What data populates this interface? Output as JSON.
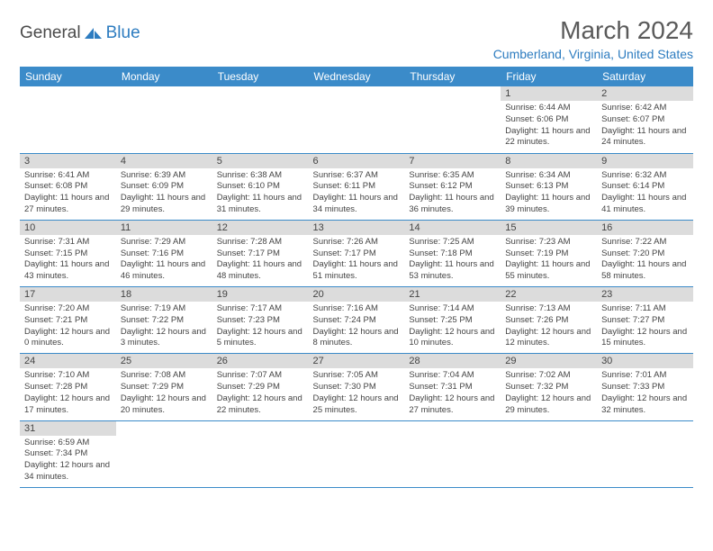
{
  "logo": {
    "text1": "General",
    "text2": "Blue"
  },
  "title": "March 2024",
  "location": "Cumberland, Virginia, United States",
  "day_headers": [
    "Sunday",
    "Monday",
    "Tuesday",
    "Wednesday",
    "Thursday",
    "Friday",
    "Saturday"
  ],
  "colors": {
    "header_bg": "#3b8bc9",
    "header_fg": "#ffffff",
    "daynum_bg": "#dcdcdc",
    "text": "#444444",
    "accent": "#2d7cc0",
    "border": "#3b8bc9"
  },
  "weeks": [
    [
      null,
      null,
      null,
      null,
      null,
      {
        "n": "1",
        "sunrise": "6:44 AM",
        "sunset": "6:06 PM",
        "daylight": "11 hours and 22 minutes."
      },
      {
        "n": "2",
        "sunrise": "6:42 AM",
        "sunset": "6:07 PM",
        "daylight": "11 hours and 24 minutes."
      }
    ],
    [
      {
        "n": "3",
        "sunrise": "6:41 AM",
        "sunset": "6:08 PM",
        "daylight": "11 hours and 27 minutes."
      },
      {
        "n": "4",
        "sunrise": "6:39 AM",
        "sunset": "6:09 PM",
        "daylight": "11 hours and 29 minutes."
      },
      {
        "n": "5",
        "sunrise": "6:38 AM",
        "sunset": "6:10 PM",
        "daylight": "11 hours and 31 minutes."
      },
      {
        "n": "6",
        "sunrise": "6:37 AM",
        "sunset": "6:11 PM",
        "daylight": "11 hours and 34 minutes."
      },
      {
        "n": "7",
        "sunrise": "6:35 AM",
        "sunset": "6:12 PM",
        "daylight": "11 hours and 36 minutes."
      },
      {
        "n": "8",
        "sunrise": "6:34 AM",
        "sunset": "6:13 PM",
        "daylight": "11 hours and 39 minutes."
      },
      {
        "n": "9",
        "sunrise": "6:32 AM",
        "sunset": "6:14 PM",
        "daylight": "11 hours and 41 minutes."
      }
    ],
    [
      {
        "n": "10",
        "sunrise": "7:31 AM",
        "sunset": "7:15 PM",
        "daylight": "11 hours and 43 minutes."
      },
      {
        "n": "11",
        "sunrise": "7:29 AM",
        "sunset": "7:16 PM",
        "daylight": "11 hours and 46 minutes."
      },
      {
        "n": "12",
        "sunrise": "7:28 AM",
        "sunset": "7:17 PM",
        "daylight": "11 hours and 48 minutes."
      },
      {
        "n": "13",
        "sunrise": "7:26 AM",
        "sunset": "7:17 PM",
        "daylight": "11 hours and 51 minutes."
      },
      {
        "n": "14",
        "sunrise": "7:25 AM",
        "sunset": "7:18 PM",
        "daylight": "11 hours and 53 minutes."
      },
      {
        "n": "15",
        "sunrise": "7:23 AM",
        "sunset": "7:19 PM",
        "daylight": "11 hours and 55 minutes."
      },
      {
        "n": "16",
        "sunrise": "7:22 AM",
        "sunset": "7:20 PM",
        "daylight": "11 hours and 58 minutes."
      }
    ],
    [
      {
        "n": "17",
        "sunrise": "7:20 AM",
        "sunset": "7:21 PM",
        "daylight": "12 hours and 0 minutes."
      },
      {
        "n": "18",
        "sunrise": "7:19 AM",
        "sunset": "7:22 PM",
        "daylight": "12 hours and 3 minutes."
      },
      {
        "n": "19",
        "sunrise": "7:17 AM",
        "sunset": "7:23 PM",
        "daylight": "12 hours and 5 minutes."
      },
      {
        "n": "20",
        "sunrise": "7:16 AM",
        "sunset": "7:24 PM",
        "daylight": "12 hours and 8 minutes."
      },
      {
        "n": "21",
        "sunrise": "7:14 AM",
        "sunset": "7:25 PM",
        "daylight": "12 hours and 10 minutes."
      },
      {
        "n": "22",
        "sunrise": "7:13 AM",
        "sunset": "7:26 PM",
        "daylight": "12 hours and 12 minutes."
      },
      {
        "n": "23",
        "sunrise": "7:11 AM",
        "sunset": "7:27 PM",
        "daylight": "12 hours and 15 minutes."
      }
    ],
    [
      {
        "n": "24",
        "sunrise": "7:10 AM",
        "sunset": "7:28 PM",
        "daylight": "12 hours and 17 minutes."
      },
      {
        "n": "25",
        "sunrise": "7:08 AM",
        "sunset": "7:29 PM",
        "daylight": "12 hours and 20 minutes."
      },
      {
        "n": "26",
        "sunrise": "7:07 AM",
        "sunset": "7:29 PM",
        "daylight": "12 hours and 22 minutes."
      },
      {
        "n": "27",
        "sunrise": "7:05 AM",
        "sunset": "7:30 PM",
        "daylight": "12 hours and 25 minutes."
      },
      {
        "n": "28",
        "sunrise": "7:04 AM",
        "sunset": "7:31 PM",
        "daylight": "12 hours and 27 minutes."
      },
      {
        "n": "29",
        "sunrise": "7:02 AM",
        "sunset": "7:32 PM",
        "daylight": "12 hours and 29 minutes."
      },
      {
        "n": "30",
        "sunrise": "7:01 AM",
        "sunset": "7:33 PM",
        "daylight": "12 hours and 32 minutes."
      }
    ],
    [
      {
        "n": "31",
        "sunrise": "6:59 AM",
        "sunset": "7:34 PM",
        "daylight": "12 hours and 34 minutes."
      },
      null,
      null,
      null,
      null,
      null,
      null
    ]
  ],
  "labels": {
    "sunrise": "Sunrise:",
    "sunset": "Sunset:",
    "daylight": "Daylight:"
  }
}
